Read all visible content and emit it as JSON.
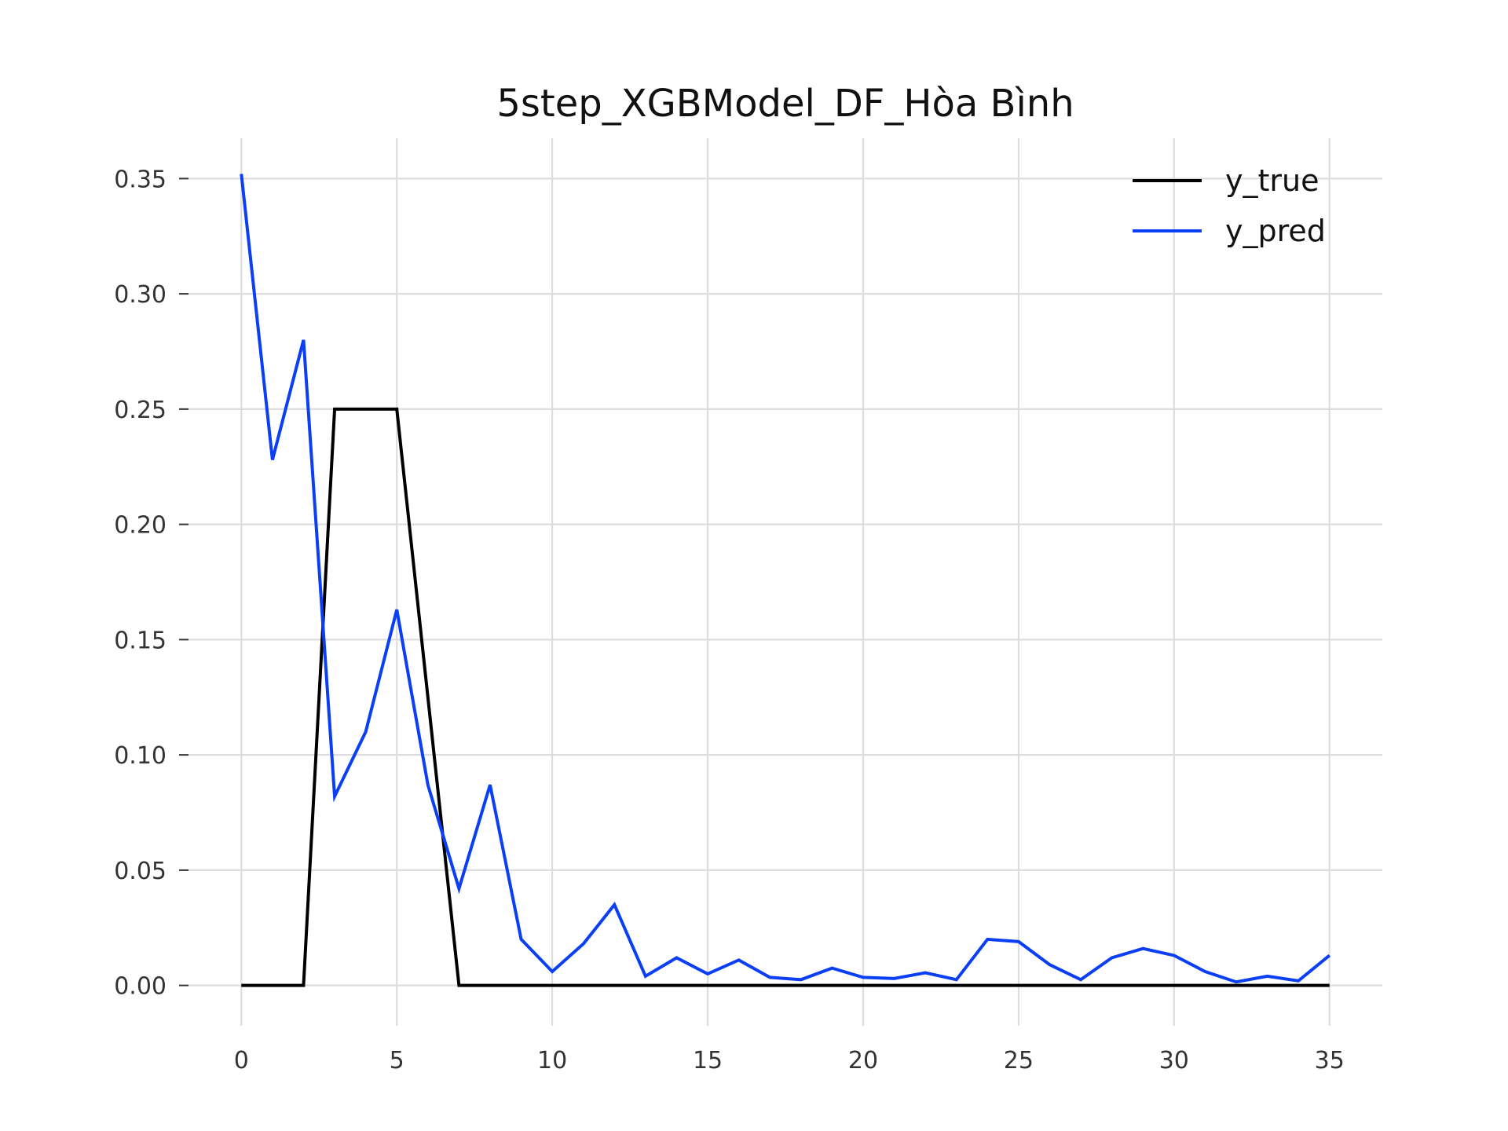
{
  "chart_data": {
    "type": "line",
    "title": "5step_XGBModel_DF_Hòa Bình",
    "xlabel": "",
    "ylabel": "",
    "xlim": [
      -1.7,
      36.7
    ],
    "ylim": [
      -0.0175,
      0.3675
    ],
    "x_ticks": [
      0,
      5,
      10,
      15,
      20,
      25,
      30,
      35
    ],
    "y_ticks": [
      0.0,
      0.05,
      0.1,
      0.15,
      0.2,
      0.25,
      0.3,
      0.35
    ],
    "y_tick_labels": [
      "0.00",
      "0.05",
      "0.10",
      "0.15",
      "0.20",
      "0.25",
      "0.30",
      "0.35"
    ],
    "grid": true,
    "legend_position": "top-right",
    "x": [
      0,
      1,
      2,
      3,
      4,
      5,
      6,
      7,
      8,
      9,
      10,
      11,
      12,
      13,
      14,
      15,
      16,
      17,
      18,
      19,
      20,
      21,
      22,
      23,
      24,
      25,
      26,
      27,
      28,
      29,
      30,
      31,
      32,
      33,
      34,
      35
    ],
    "series": [
      {
        "name": "y_true",
        "color": "#000000",
        "values": [
          0,
          0,
          0,
          0.25,
          0.25,
          0.25,
          0.125,
          0,
          0,
          0,
          0,
          0,
          0,
          0,
          0,
          0,
          0,
          0,
          0,
          0,
          0,
          0,
          0,
          0,
          0,
          0,
          0,
          0,
          0,
          0,
          0,
          0,
          0,
          0,
          0,
          0
        ]
      },
      {
        "name": "y_pred",
        "color": "#0a3ff5",
        "values": [
          0.352,
          0.228,
          0.28,
          0.082,
          0.11,
          0.163,
          0.087,
          0.042,
          0.087,
          0.02,
          0.006,
          0.018,
          0.035,
          0.004,
          0.012,
          0.005,
          0.011,
          0.0035,
          0.0025,
          0.0075,
          0.0035,
          0.003,
          0.0055,
          0.0025,
          0.02,
          0.019,
          0.009,
          0.0025,
          0.012,
          0.016,
          0.013,
          0.006,
          0.0015,
          0.004,
          0.002,
          0.013
        ]
      }
    ]
  }
}
